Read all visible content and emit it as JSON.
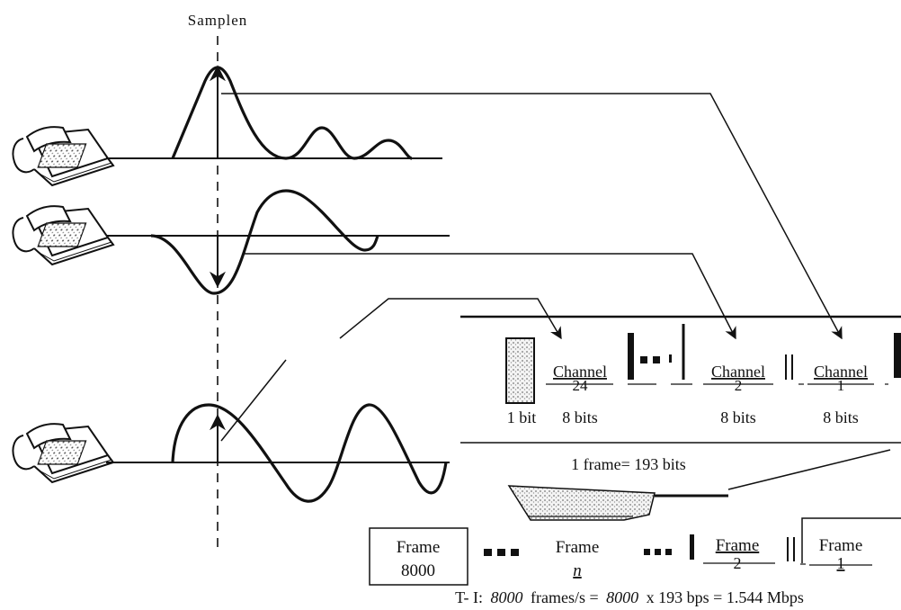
{
  "sampling": {
    "label": "Samplen"
  },
  "frame_detail": {
    "framing_bit_label": "1 bit",
    "channels": [
      {
        "name": "Channel",
        "number": "24",
        "bits": "8 bits"
      },
      {
        "name": "Channel",
        "number": "2",
        "bits": "8 bits"
      },
      {
        "name": "Channel",
        "number": "1",
        "bits": "8 bits"
      }
    ],
    "frame_size": "1 frame=  193 bits"
  },
  "frame_sequence": {
    "boxes": [
      {
        "name": "Frame",
        "number": "8000"
      },
      {
        "name": "Frame",
        "number": "n"
      },
      {
        "name": "Frame",
        "number": "2"
      },
      {
        "name": "Frame",
        "number": "1"
      }
    ],
    "formula": {
      "prefix": "T- I:",
      "rate_italic": "8000",
      "mid": "frames/s =",
      "count_italic": "8000",
      "tail": "x  193 bps = 1.544 Mbps"
    }
  }
}
